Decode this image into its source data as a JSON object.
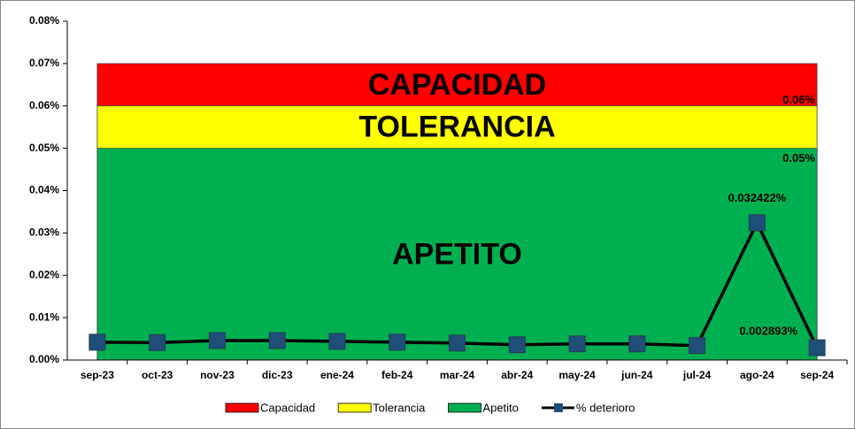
{
  "chart_data": {
    "type": "line",
    "categories": [
      "sep-23",
      "oct-23",
      "nov-23",
      "dic-23",
      "ene-24",
      "feb-24",
      "mar-24",
      "abr-24",
      "may-24",
      "jun-24",
      "jul-24",
      "ago-24",
      "sep-24"
    ],
    "ylim": [
      0,
      0.08
    ],
    "yticks": [
      {
        "value": 0,
        "label": "0.00%"
      },
      {
        "value": 0.01,
        "label": "0.01%"
      },
      {
        "value": 0.02,
        "label": "0.02%"
      },
      {
        "value": 0.03,
        "label": "0.03%"
      },
      {
        "value": 0.04,
        "label": "0.04%"
      },
      {
        "value": 0.05,
        "label": "0.05%"
      },
      {
        "value": 0.06,
        "label": "0.06%"
      },
      {
        "value": 0.07,
        "label": "0.07%"
      },
      {
        "value": 0.08,
        "label": "0.08%"
      }
    ],
    "grid": false,
    "legend": "bottom",
    "series": [
      {
        "name": "Capacidad",
        "type": "area",
        "color": "#ff0000",
        "band_label": "CAPACIDAD",
        "label_color": "#7f0000",
        "values": [
          0.07,
          0.07,
          0.07,
          0.07,
          0.07,
          0.07,
          0.07,
          0.07,
          0.07,
          0.07,
          0.07,
          0.07,
          0.07
        ]
      },
      {
        "name": "Tolerancia",
        "type": "area",
        "color": "#ffff00",
        "band_label": "TOLERANCIA",
        "label_color": "#000000",
        "values": [
          0.06,
          0.06,
          0.06,
          0.06,
          0.06,
          0.06,
          0.06,
          0.06,
          0.06,
          0.06,
          0.06,
          0.06,
          0.06
        ],
        "value_labels": [
          null,
          null,
          null,
          null,
          null,
          null,
          null,
          null,
          null,
          null,
          null,
          null,
          "0.06%"
        ]
      },
      {
        "name": "Apetito",
        "type": "area",
        "color": "#00b050",
        "band_label": "APETITO",
        "label_color": "#ffffff",
        "values": [
          0.05,
          0.05,
          0.05,
          0.05,
          0.05,
          0.05,
          0.05,
          0.05,
          0.05,
          0.05,
          0.05,
          0.05,
          0.05
        ],
        "value_labels": [
          null,
          null,
          null,
          null,
          null,
          null,
          null,
          null,
          null,
          null,
          null,
          null,
          "0.05%"
        ]
      },
      {
        "name": "% deterioro",
        "type": "line",
        "color": "#000000",
        "marker_color": "#1f4e79",
        "values": [
          0.0042,
          0.0041,
          0.0046,
          0.0046,
          0.0044,
          0.0042,
          0.004,
          0.0036,
          0.0038,
          0.0038,
          0.0034,
          0.032422,
          0.002893
        ],
        "value_labels": [
          null,
          null,
          null,
          null,
          null,
          null,
          null,
          null,
          null,
          null,
          null,
          "0.032422%",
          "0.002893%"
        ]
      }
    ]
  }
}
